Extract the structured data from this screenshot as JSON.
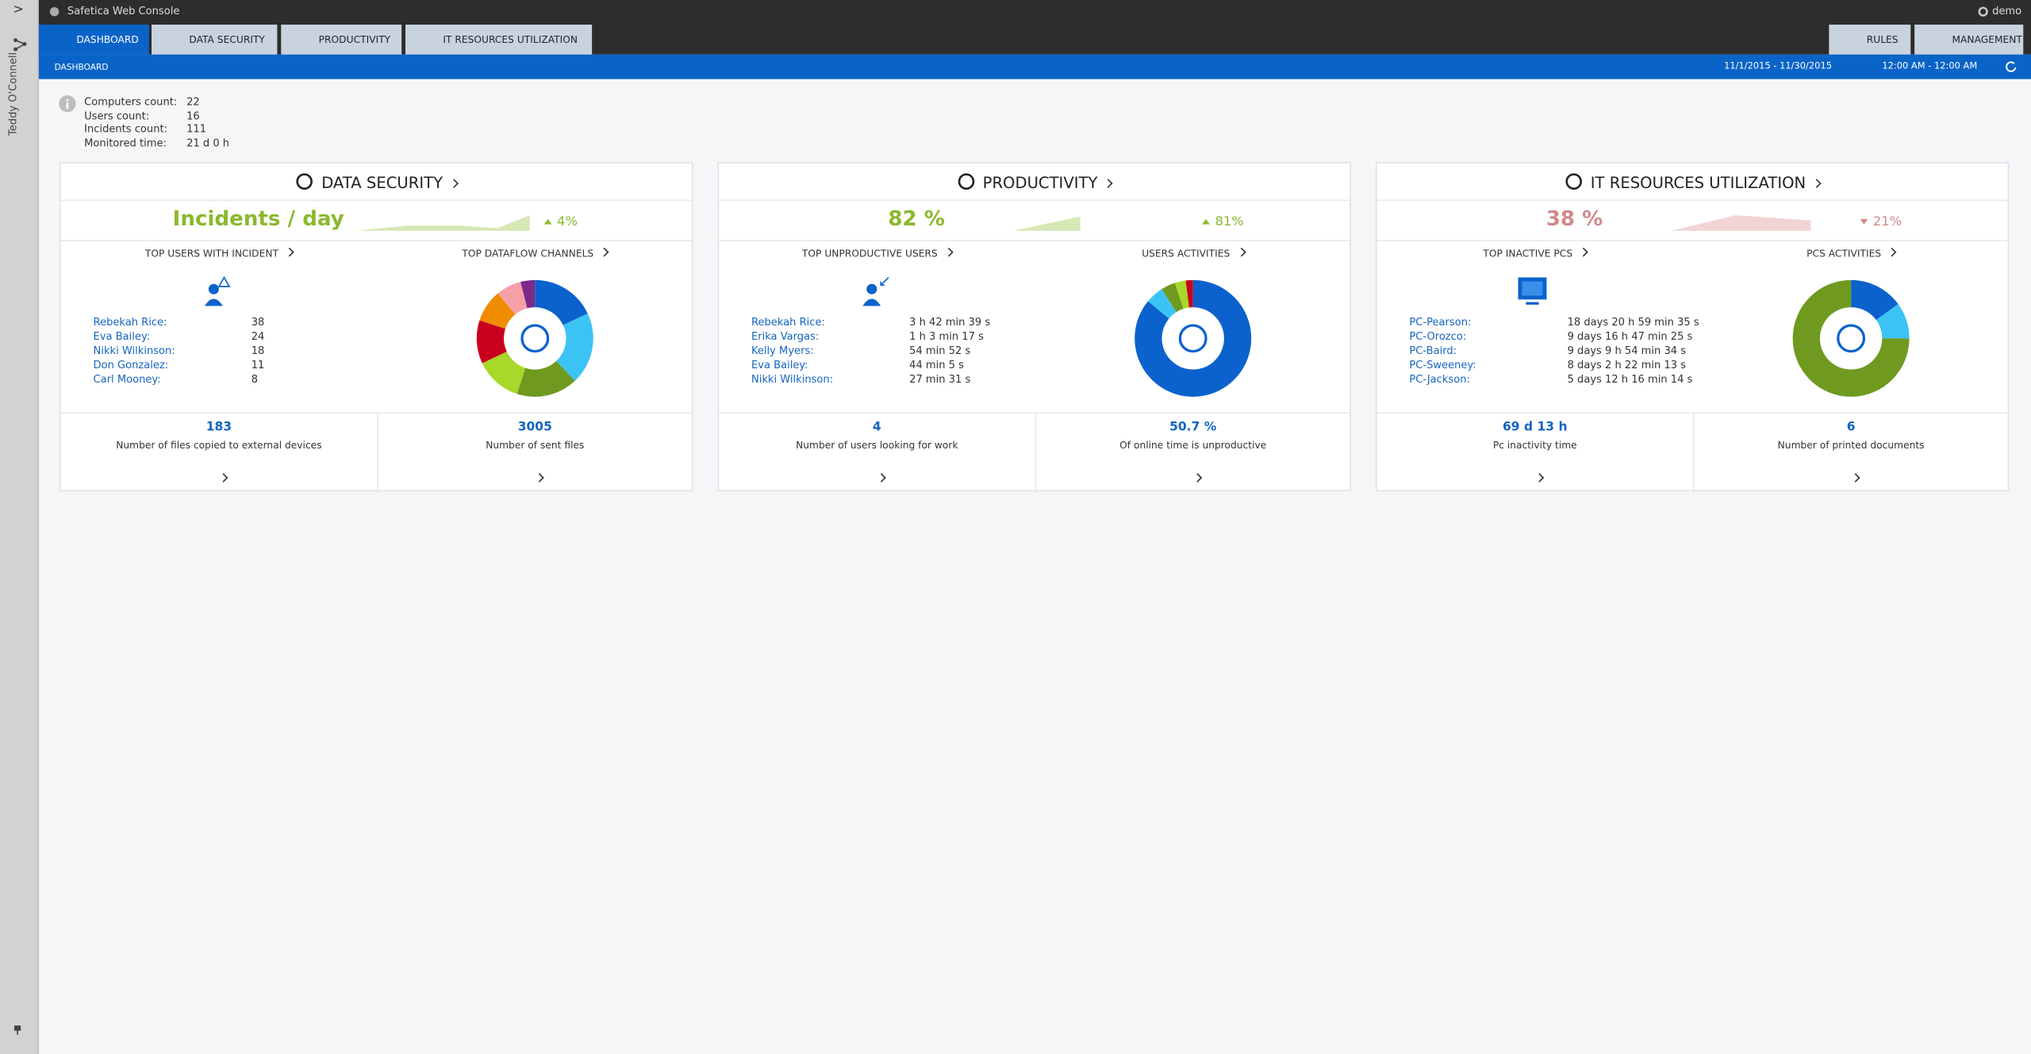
{
  "app": {
    "title": "Safetica Web Console",
    "user": "demo",
    "sidebar_user": "Teddy O'Connell"
  },
  "tabs": [
    "DASHBOARD",
    "DATA SECURITY",
    "PRODUCTIVITY",
    "IT RESOURCES UTILIZATION"
  ],
  "right_tabs": [
    "RULES",
    "MANAGEMENT"
  ],
  "breadcrumb": "DASHBOARD",
  "date_range": "11/1/2015 - 11/30/2015",
  "time_range": "12:00 AM - 12:00 AM",
  "summary": [
    {
      "label": "Computers count:",
      "value": "22"
    },
    {
      "label": "Users count:",
      "value": "16"
    },
    {
      "label": "Incidents count:",
      "value": "111"
    },
    {
      "label": "Monitored time:",
      "value": "21 d 0 h"
    }
  ],
  "panels": [
    {
      "title": "DATA SECURITY",
      "metric": "Incidents / day",
      "change": "4%",
      "trend": "up",
      "left_title": "TOP USERS WITH INCIDENT",
      "right_title": "TOP DATAFLOW CHANNELS",
      "list": [
        {
          "name": "Rebekah Rice:",
          "value": "38"
        },
        {
          "name": "Eva Bailey:",
          "value": "24"
        },
        {
          "name": "Nikki Wilkinson:",
          "value": "18"
        },
        {
          "name": "Don Gonzalez:",
          "value": "11"
        },
        {
          "name": "Carl Mooney:",
          "value": "8"
        }
      ],
      "donut": [
        {
          "value": 18,
          "color": "#0b62cc"
        },
        {
          "value": 20,
          "color": "#3cc3f5"
        },
        {
          "value": 17,
          "color": "#6f9a1f"
        },
        {
          "value": 13,
          "color": "#a8d82a"
        },
        {
          "value": 12,
          "color": "#c8001e"
        },
        {
          "value": 9,
          "color": "#f08c00"
        },
        {
          "value": 7,
          "color": "#f6a0a8"
        },
        {
          "value": 4,
          "color": "#7b2a8c"
        }
      ],
      "stats": [
        {
          "value": "183",
          "label": "Number of files copied to external devices"
        },
        {
          "value": "3005",
          "label": "Number of sent files"
        }
      ]
    },
    {
      "title": "PRODUCTIVITY",
      "metric": "82 %",
      "change": "81%",
      "trend": "up",
      "left_title": "TOP UNPRODUCTIVE USERS",
      "right_title": "USERS ACTIVITIES",
      "list": [
        {
          "name": "Rebekah Rice:",
          "value": "3 h 42 min 39 s"
        },
        {
          "name": "Erika Vargas:",
          "value": "1 h 3 min 17 s"
        },
        {
          "name": "Kelly Myers:",
          "value": "54 min 52 s"
        },
        {
          "name": "Eva Bailey:",
          "value": "44 min 5 s"
        },
        {
          "name": "Nikki Wilkinson:",
          "value": "27 min 31 s"
        }
      ],
      "donut": [
        {
          "value": 86,
          "color": "#0b62cc"
        },
        {
          "value": 5,
          "color": "#3cc3f5"
        },
        {
          "value": 4,
          "color": "#6f9a1f"
        },
        {
          "value": 3,
          "color": "#a8d82a"
        },
        {
          "value": 2,
          "color": "#c8001e"
        }
      ],
      "stats": [
        {
          "value": "4",
          "label": "Number of users looking for work"
        },
        {
          "value": "50.7 %",
          "label": "Of online time is unproductive"
        }
      ]
    },
    {
      "title": "IT RESOURCES UTILIZATION",
      "metric": "38 %",
      "change": "21%",
      "trend": "down",
      "left_title": "TOP INACTIVE PCS",
      "right_title": "PCS ACTIVITIES",
      "list": [
        {
          "name": "PC-Pearson:",
          "value": "18 days 20 h 59 min 35 s"
        },
        {
          "name": "PC-Orozco:",
          "value": "9 days 16 h 47 min 25 s"
        },
        {
          "name": "PC-Baird:",
          "value": "9 days 9 h 54 min 34 s"
        },
        {
          "name": "PC-Sweeney:",
          "value": "8 days 2 h 22 min 13 s"
        },
        {
          "name": "PC-Jackson:",
          "value": "5 days 12 h 16 min 14 s"
        }
      ],
      "donut": [
        {
          "value": 15,
          "color": "#0b62cc"
        },
        {
          "value": 10,
          "color": "#3cc3f5"
        },
        {
          "value": 75,
          "color": "#6f9a1f"
        }
      ],
      "stats": [
        {
          "value": "69 d 13 h",
          "label": "Pc inactivity time"
        },
        {
          "value": "6",
          "label": "Number of printed documents"
        }
      ]
    }
  ]
}
